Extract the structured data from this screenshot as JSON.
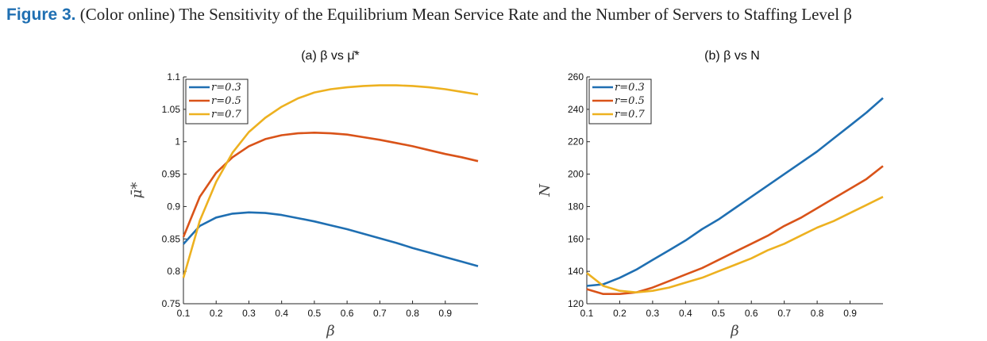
{
  "caption": {
    "label": "Figure 3.",
    "text": "(Color online) The Sensitivity of the Equilibrium Mean Service Rate and the Number of Servers to Staffing Level β"
  },
  "colors": {
    "r03": "#1f6fb2",
    "r05": "#d95319",
    "r07": "#edb120",
    "axis": "#262626"
  },
  "chart_data": [
    {
      "type": "line",
      "title": "(a) β vs μ̄*",
      "xlabel": "β",
      "ylabel": "μ̄*",
      "xlim": [
        0.1,
        1.0
      ],
      "ylim": [
        0.75,
        1.1
      ],
      "xticks": [
        0.1,
        0.2,
        0.3,
        0.4,
        0.5,
        0.6,
        0.7,
        0.8,
        0.9
      ],
      "yticks": [
        0.75,
        0.8,
        0.85,
        0.9,
        0.95,
        1,
        1.05,
        1.1
      ],
      "ytick_labels": [
        "0.75",
        "0.8",
        "0.85",
        "0.9",
        "0.95",
        "1",
        "1.05",
        "1.1"
      ],
      "grid": false,
      "legend_position": "top-left",
      "x": [
        0.1,
        0.15,
        0.2,
        0.25,
        0.3,
        0.35,
        0.4,
        0.45,
        0.5,
        0.55,
        0.6,
        0.65,
        0.7,
        0.75,
        0.8,
        0.85,
        0.9,
        0.95,
        1.0
      ],
      "series": [
        {
          "name": "r=0.3",
          "color": "#1f6fb2",
          "values": [
            0.842,
            0.87,
            0.883,
            0.889,
            0.891,
            0.89,
            0.887,
            0.882,
            0.877,
            0.871,
            0.865,
            0.858,
            0.851,
            0.844,
            0.836,
            0.829,
            0.822,
            0.815,
            0.808
          ]
        },
        {
          "name": "r=0.5",
          "color": "#d95319",
          "values": [
            0.853,
            0.915,
            0.952,
            0.976,
            0.993,
            1.004,
            1.01,
            1.013,
            1.014,
            1.013,
            1.011,
            1.007,
            1.003,
            0.998,
            0.993,
            0.987,
            0.981,
            0.976,
            0.97
          ]
        },
        {
          "name": "r=0.7",
          "color": "#edb120",
          "values": [
            0.79,
            0.878,
            0.938,
            0.983,
            1.015,
            1.037,
            1.054,
            1.067,
            1.076,
            1.081,
            1.084,
            1.086,
            1.087,
            1.087,
            1.086,
            1.084,
            1.081,
            1.077,
            1.073
          ]
        }
      ]
    },
    {
      "type": "line",
      "title": "(b) β vs N",
      "xlabel": "β",
      "ylabel": "N",
      "xlim": [
        0.1,
        1.0
      ],
      "ylim": [
        120,
        260
      ],
      "xticks": [
        0.1,
        0.2,
        0.3,
        0.4,
        0.5,
        0.6,
        0.7,
        0.8,
        0.9
      ],
      "yticks": [
        120,
        140,
        160,
        180,
        200,
        220,
        240,
        260
      ],
      "ytick_labels": [
        "120",
        "140",
        "160",
        "180",
        "200",
        "220",
        "240",
        "260"
      ],
      "grid": false,
      "legend_position": "top-left",
      "x": [
        0.1,
        0.15,
        0.2,
        0.25,
        0.3,
        0.35,
        0.4,
        0.45,
        0.5,
        0.55,
        0.6,
        0.65,
        0.7,
        0.75,
        0.8,
        0.85,
        0.9,
        0.95,
        1.0
      ],
      "series": [
        {
          "name": "r=0.3",
          "color": "#1f6fb2",
          "values": [
            131,
            132,
            136,
            141,
            147,
            153,
            159,
            166,
            172,
            179,
            186,
            193,
            200,
            207,
            214,
            222,
            230,
            238,
            247
          ]
        },
        {
          "name": "r=0.5",
          "color": "#d95319",
          "values": [
            129,
            126,
            126,
            127,
            130,
            134,
            138,
            142,
            147,
            152,
            157,
            162,
            168,
            173,
            179,
            185,
            191,
            197,
            205
          ]
        },
        {
          "name": "r=0.7",
          "color": "#edb120",
          "values": [
            139,
            131,
            128,
            127,
            128,
            130,
            133,
            136,
            140,
            144,
            148,
            153,
            157,
            162,
            167,
            171,
            176,
            181,
            186
          ]
        }
      ]
    }
  ]
}
